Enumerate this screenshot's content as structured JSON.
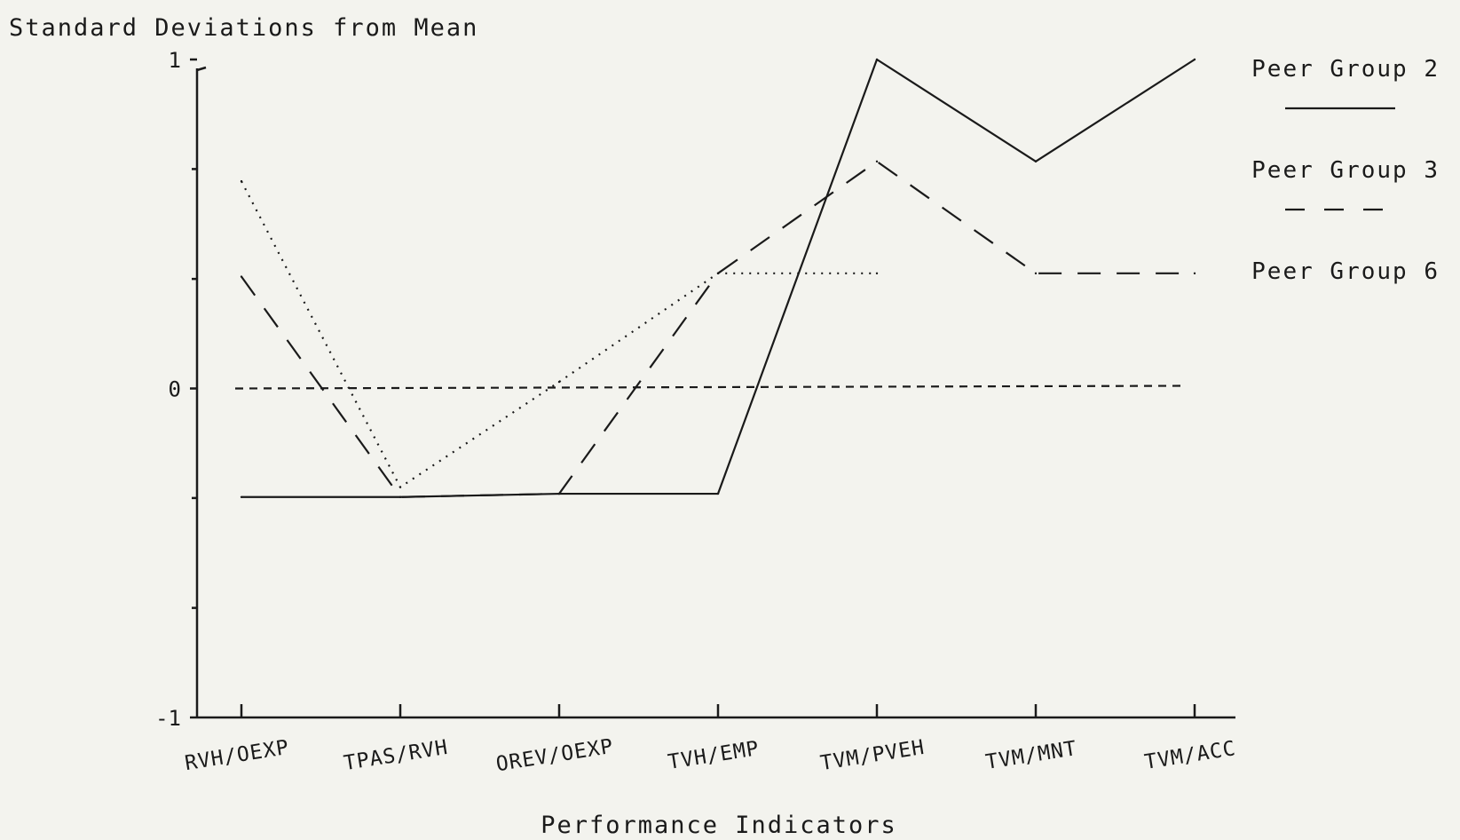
{
  "chart_data": {
    "type": "line",
    "ylabel": "Standard Deviations from Mean",
    "xlabel": "Performance Indicators",
    "ylim": [
      -1,
      1
    ],
    "yticks": [
      {
        "value": 1,
        "label": "1"
      },
      {
        "value": 0,
        "label": "0"
      },
      {
        "value": -1,
        "label": "-1"
      }
    ],
    "yminor": [
      0.667,
      0.333,
      -0.333,
      -0.667
    ],
    "categories": [
      "RVH/OEXP",
      "TPAS/RVH",
      "OREV/OEXP",
      "TVH/EMP",
      "TVM/PVEH",
      "TVM/MNT",
      "TVM/ACC"
    ],
    "reference_value": 0,
    "grid": false,
    "legend_position": "right",
    "series": [
      {
        "name": "Peer Group 2",
        "style": "solid",
        "values": [
          -0.33,
          -0.33,
          -0.32,
          -0.32,
          1.0,
          0.69,
          1.0
        ]
      },
      {
        "name": "Peer Group 3",
        "style": "dashed",
        "values": [
          0.34,
          -0.33,
          -0.32,
          0.35,
          0.69,
          0.35,
          0.35
        ]
      },
      {
        "name": "Peer Group 6",
        "style": "dotted",
        "values": [
          0.63,
          -0.3,
          0.02,
          0.35,
          0.35,
          null,
          null
        ]
      }
    ]
  }
}
